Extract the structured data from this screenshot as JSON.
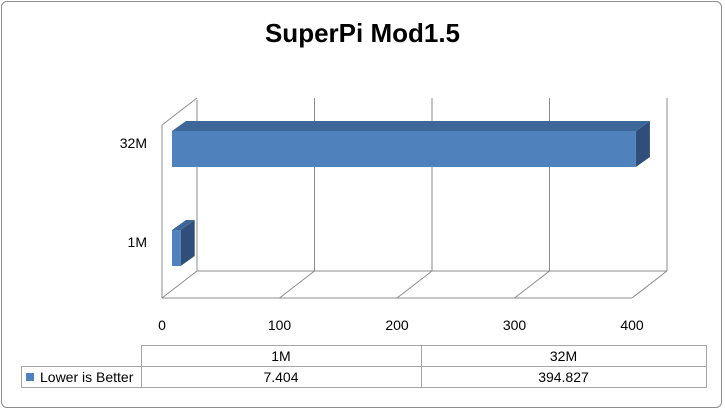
{
  "chart_data": {
    "type": "bar",
    "orientation": "horizontal",
    "title": "SuperPi Mod1.5",
    "categories": [
      "1M",
      "32M"
    ],
    "series": [
      {
        "name": "Lower is Better",
        "values": [
          7.404,
          394.827
        ],
        "color": "#4f81bd"
      }
    ],
    "x_ticks": [
      0,
      100,
      200,
      300,
      400
    ],
    "xlim": [
      0,
      400
    ],
    "grid": true,
    "legend": "data-table",
    "data_table": {
      "headers": [
        "1M",
        "32M"
      ],
      "rows": [
        {
          "label": "Lower is Better",
          "values": [
            "7.404",
            "394.827"
          ]
        }
      ]
    }
  }
}
